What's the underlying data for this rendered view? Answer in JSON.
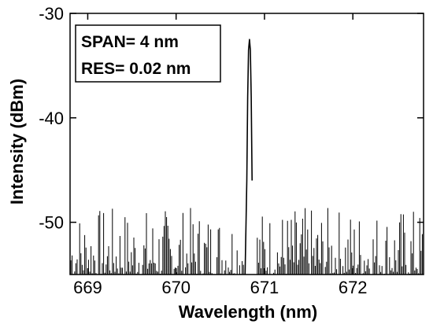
{
  "chart_data": {
    "type": "line",
    "xlabel": "Wavelength (nm)",
    "ylabel": "Intensity (dBm)",
    "xlim": [
      668.8,
      672.8
    ],
    "ylim": [
      -55,
      -30
    ],
    "xticks": [
      669,
      670,
      671,
      672
    ],
    "yticks": [
      -30,
      -40,
      -50
    ],
    "grid": false,
    "legend": "none",
    "annotations": [
      "SPAN= 4 nm",
      "RES= 0.02 nm"
    ],
    "noise_floor_dbm": [
      -55,
      -48.5
    ],
    "series": [
      {
        "x": [
          670.78,
          670.8,
          670.81,
          670.82,
          670.83,
          670.84,
          670.85,
          670.86
        ],
        "y": [
          -55,
          -46,
          -38,
          -33.5,
          -32.5,
          -33.5,
          -38,
          -46
        ],
        "color": "#000000"
      }
    ]
  }
}
